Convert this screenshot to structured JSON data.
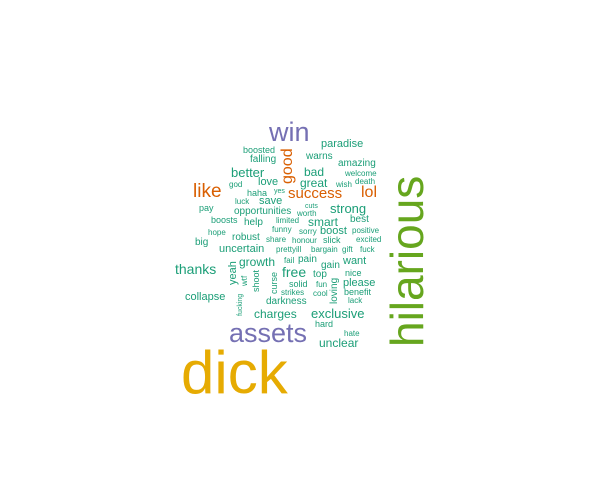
{
  "colors": {
    "teal": "#1b9e77",
    "orange": "#d95f02",
    "purple": "#7570b3",
    "gold": "#e6ab02",
    "green": "#66a61e"
  },
  "words": [
    {
      "text": "dick",
      "color": "#e6ab02"
    },
    {
      "text": "hilarious",
      "color": "#66a61e"
    },
    {
      "text": "assets",
      "color": "#7570b3"
    },
    {
      "text": "win",
      "color": "#7570b3"
    },
    {
      "text": "like",
      "color": "#d95f02"
    },
    {
      "text": "good",
      "color": "#d95f02"
    },
    {
      "text": "success",
      "color": "#d95f02"
    },
    {
      "text": "lol",
      "color": "#d95f02"
    },
    {
      "text": "paradise",
      "color": "#1b9e77"
    },
    {
      "text": "boosted",
      "color": "#1b9e77"
    },
    {
      "text": "falling",
      "color": "#1b9e77"
    },
    {
      "text": "warns",
      "color": "#1b9e77"
    },
    {
      "text": "amazing",
      "color": "#1b9e77"
    },
    {
      "text": "better",
      "color": "#1b9e77"
    },
    {
      "text": "bad",
      "color": "#1b9e77"
    },
    {
      "text": "welcome",
      "color": "#1b9e77"
    },
    {
      "text": "love",
      "color": "#1b9e77"
    },
    {
      "text": "great",
      "color": "#1b9e77"
    },
    {
      "text": "god",
      "color": "#1b9e77"
    },
    {
      "text": "wish",
      "color": "#1b9e77"
    },
    {
      "text": "death",
      "color": "#1b9e77"
    },
    {
      "text": "haha",
      "color": "#1b9e77"
    },
    {
      "text": "yes",
      "color": "#1b9e77"
    },
    {
      "text": "luck",
      "color": "#1b9e77"
    },
    {
      "text": "save",
      "color": "#1b9e77"
    },
    {
      "text": "cuts",
      "color": "#1b9e77"
    },
    {
      "text": "strong",
      "color": "#1b9e77"
    },
    {
      "text": "pay",
      "color": "#1b9e77"
    },
    {
      "text": "opportunities",
      "color": "#1b9e77"
    },
    {
      "text": "worth",
      "color": "#1b9e77"
    },
    {
      "text": "boosts",
      "color": "#1b9e77"
    },
    {
      "text": "help",
      "color": "#1b9e77"
    },
    {
      "text": "limited",
      "color": "#1b9e77"
    },
    {
      "text": "smart",
      "color": "#1b9e77"
    },
    {
      "text": "best",
      "color": "#1b9e77"
    },
    {
      "text": "funny",
      "color": "#1b9e77"
    },
    {
      "text": "sorry",
      "color": "#1b9e77"
    },
    {
      "text": "boost",
      "color": "#1b9e77"
    },
    {
      "text": "positive",
      "color": "#1b9e77"
    },
    {
      "text": "hope",
      "color": "#1b9e77"
    },
    {
      "text": "robust",
      "color": "#1b9e77"
    },
    {
      "text": "share",
      "color": "#1b9e77"
    },
    {
      "text": "honour",
      "color": "#1b9e77"
    },
    {
      "text": "slick",
      "color": "#1b9e77"
    },
    {
      "text": "excited",
      "color": "#1b9e77"
    },
    {
      "text": "big",
      "color": "#1b9e77"
    },
    {
      "text": "uncertain",
      "color": "#1b9e77"
    },
    {
      "text": "prettyill",
      "color": "#1b9e77"
    },
    {
      "text": "bargain",
      "color": "#1b9e77"
    },
    {
      "text": "gift",
      "color": "#1b9e77"
    },
    {
      "text": "fuck",
      "color": "#1b9e77"
    },
    {
      "text": "growth",
      "color": "#1b9e77"
    },
    {
      "text": "fail",
      "color": "#1b9e77"
    },
    {
      "text": "pain",
      "color": "#1b9e77"
    },
    {
      "text": "want",
      "color": "#1b9e77"
    },
    {
      "text": "thanks",
      "color": "#1b9e77"
    },
    {
      "text": "yeah",
      "color": "#1b9e77"
    },
    {
      "text": "free",
      "color": "#1b9e77"
    },
    {
      "text": "gain",
      "color": "#1b9e77"
    },
    {
      "text": "wtf",
      "color": "#1b9e77"
    },
    {
      "text": "shoot",
      "color": "#1b9e77"
    },
    {
      "text": "curse",
      "color": "#1b9e77"
    },
    {
      "text": "top",
      "color": "#1b9e77"
    },
    {
      "text": "nice",
      "color": "#1b9e77"
    },
    {
      "text": "solid",
      "color": "#1b9e77"
    },
    {
      "text": "fun",
      "color": "#1b9e77"
    },
    {
      "text": "loving",
      "color": "#1b9e77"
    },
    {
      "text": "please",
      "color": "#1b9e77"
    },
    {
      "text": "strikes",
      "color": "#1b9e77"
    },
    {
      "text": "cool",
      "color": "#1b9e77"
    },
    {
      "text": "benefit",
      "color": "#1b9e77"
    },
    {
      "text": "collapse",
      "color": "#1b9e77"
    },
    {
      "text": "fucking",
      "color": "#1b9e77"
    },
    {
      "text": "darkness",
      "color": "#1b9e77"
    },
    {
      "text": "lack",
      "color": "#1b9e77"
    },
    {
      "text": "charges",
      "color": "#1b9e77"
    },
    {
      "text": "exclusive",
      "color": "#1b9e77"
    },
    {
      "text": "hard",
      "color": "#1b9e77"
    },
    {
      "text": "hate",
      "color": "#1b9e77"
    },
    {
      "text": "unclear",
      "color": "#1b9e77"
    }
  ]
}
